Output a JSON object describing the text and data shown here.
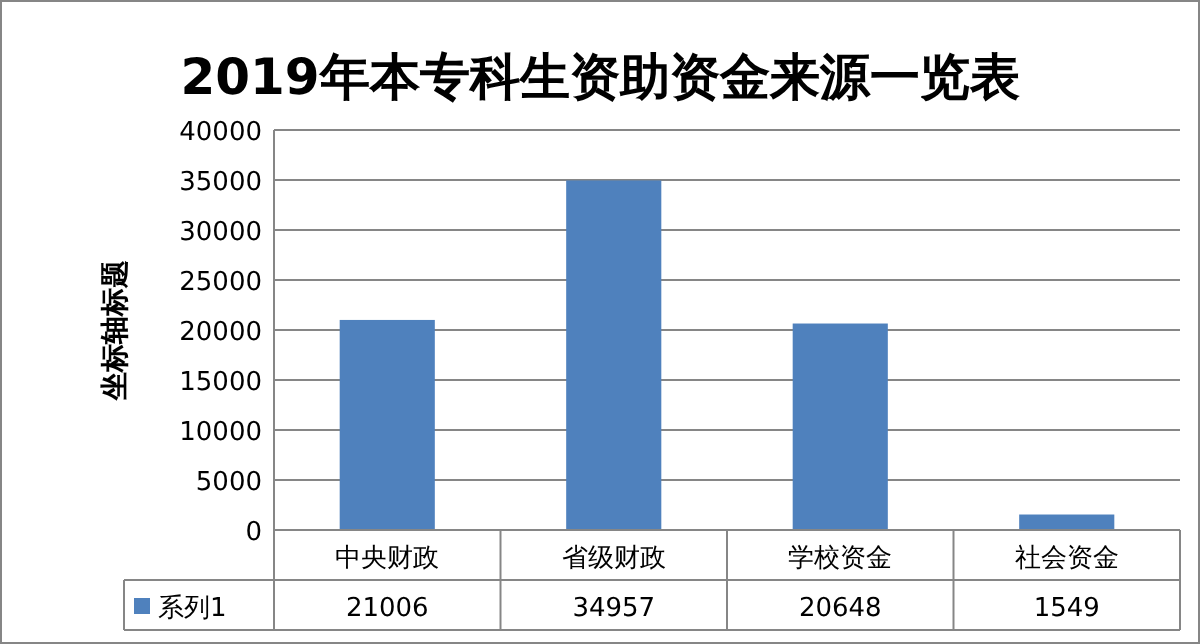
{
  "chart_data": {
    "type": "bar",
    "title": "2019年本专科生资助资金来源一览表",
    "ylabel": "坐标轴标题",
    "categories": [
      "中央财政",
      "省级财政",
      "学校资金",
      "社会资金"
    ],
    "series": [
      {
        "name": "系列1",
        "color": "#4f81bd",
        "values": [
          21006,
          34957,
          20648,
          1549
        ]
      }
    ],
    "ylim": [
      0,
      40000
    ],
    "yticks": [
      0,
      5000,
      10000,
      15000,
      20000,
      25000,
      30000,
      35000,
      40000
    ],
    "grid": "y",
    "data_labels": true,
    "legend": "bottom"
  }
}
